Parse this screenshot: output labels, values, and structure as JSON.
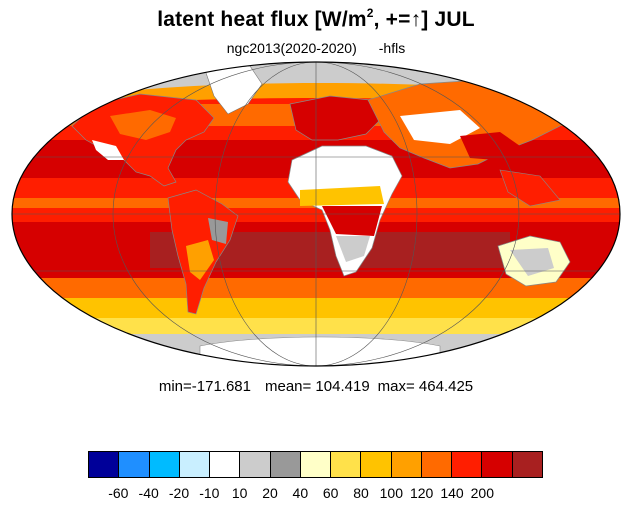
{
  "title": {
    "main": "latent heat flux [W/m",
    "sup": "2",
    "tail": ", +=↑]  JUL"
  },
  "subtitle": {
    "dataset": "ngc2013(2020-2020)",
    "variable": "-hfls"
  },
  "stats": {
    "min": "min=-171.681",
    "mean": "mean= 104.419",
    "max": "max= 464.425"
  },
  "colorbar": {
    "colors": [
      "#000099",
      "#1f8fff",
      "#00bbff",
      "#c9efff",
      "#ffffff",
      "#cccccc",
      "#999999",
      "#ffffc8",
      "#ffe14a",
      "#ffc300",
      "#ffa000",
      "#ff6a00",
      "#ff1e00",
      "#d60000",
      "#a82020"
    ],
    "labels": [
      "-60",
      "-40",
      "-20",
      "-10",
      "10",
      "20",
      "40",
      "60",
      "80",
      "100",
      "120",
      "140",
      "200"
    ]
  }
}
